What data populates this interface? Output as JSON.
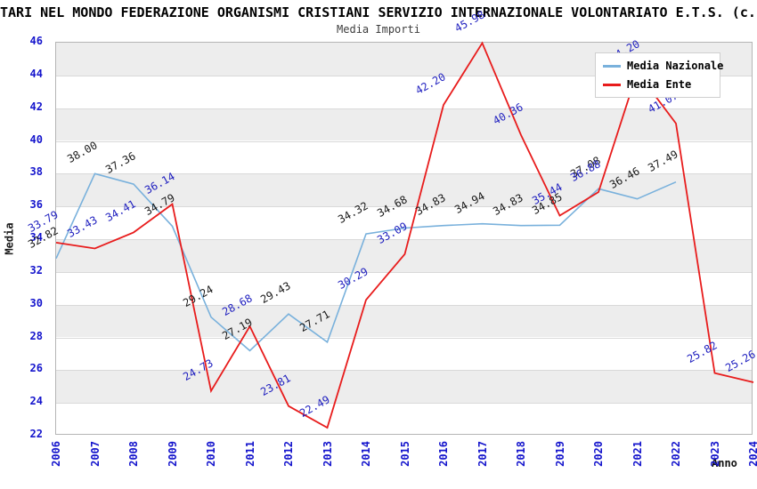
{
  "title": "TARI NEL MONDO FEDERAZIONE ORGANISMI CRISTIANI SERVIZIO INTERNAZIONALE VOLONTARIATO E.T.S. (c.f",
  "subtitle": "Media Importi",
  "legend": {
    "items": [
      {
        "label": "Media Nazionale",
        "color": "#79b1dc"
      },
      {
        "label": "Media Ente",
        "color": "#e81c1c"
      }
    ]
  },
  "colors": {
    "band": "#ededed",
    "grid": "#d9d9d9",
    "frame": "#b5b5b5",
    "tick_text": "#1414cc",
    "nazionale_line": "#79b1dc",
    "ente_line": "#e81c1c",
    "nazionale_label_text": "#1a1a1a",
    "ente_label_text": "#1f1fbf"
  },
  "chart_data": {
    "type": "line",
    "title": "TARI NEL MONDO FEDERAZIONE ORGANISMI CRISTIANI SERVIZIO INTERNAZIONALE VOLONTARIATO E.T.S. (c.f",
    "subtitle": "Media Importi",
    "xlabel": "Anno",
    "ylabel": "Media",
    "ylim": [
      22,
      46
    ],
    "ytick_step": 2,
    "x": [
      2006,
      2007,
      2008,
      2009,
      2010,
      2011,
      2012,
      2013,
      2014,
      2015,
      2016,
      2017,
      2018,
      2019,
      2020,
      2021,
      2022,
      2023,
      2024
    ],
    "grid": true,
    "legend_position": "top-right",
    "series": [
      {
        "name": "Media Nazionale",
        "color": "#79b1dc",
        "label_color": "#1a1a1a",
        "x": [
          2006,
          2007,
          2008,
          2009,
          2010,
          2011,
          2012,
          2013,
          2014,
          2015,
          2016,
          2017,
          2018,
          2019,
          2020,
          2021,
          2022
        ],
        "values": [
          32.82,
          38.0,
          37.36,
          34.79,
          29.24,
          27.19,
          29.43,
          27.71,
          34.32,
          34.68,
          34.83,
          34.94,
          34.83,
          34.85,
          37.08,
          36.46,
          37.49
        ]
      },
      {
        "name": "Media Ente",
        "color": "#e81c1c",
        "label_color": "#1f1fbf",
        "x": [
          2006,
          2007,
          2008,
          2009,
          2010,
          2011,
          2012,
          2013,
          2014,
          2015,
          2016,
          2017,
          2018,
          2019,
          2020,
          2021,
          2022,
          2023,
          2024
        ],
        "values": [
          33.79,
          33.43,
          34.41,
          36.14,
          24.73,
          28.68,
          23.81,
          22.49,
          30.29,
          33.09,
          42.2,
          45.98,
          40.36,
          35.44,
          36.88,
          44.2,
          41.07,
          25.82,
          25.26
        ],
        "note_2021": "label hidden behind legend box"
      }
    ]
  }
}
